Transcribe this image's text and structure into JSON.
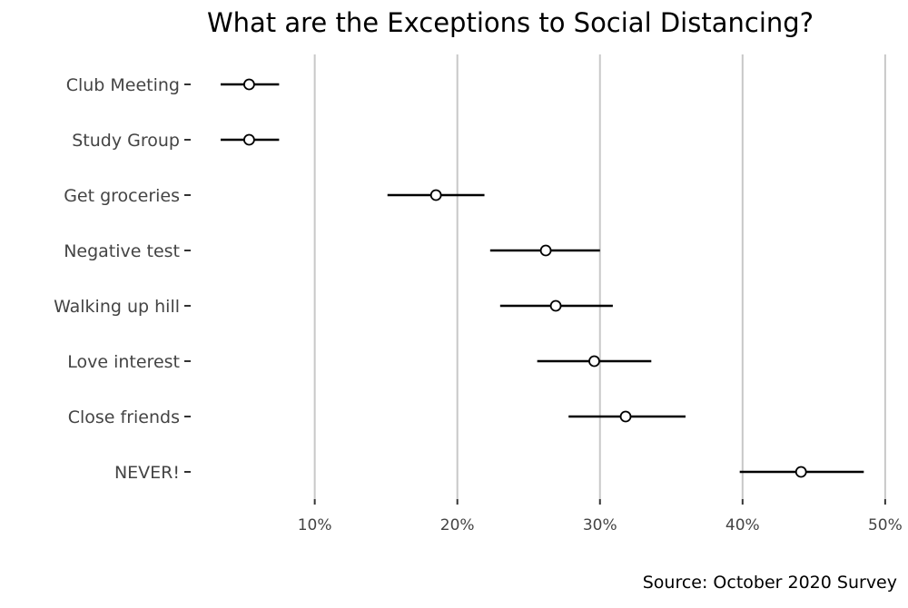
{
  "chart_data": {
    "type": "scatter",
    "title": "What are the Exceptions to Social Distancing?",
    "caption": "Source: October 2020 Survey",
    "xlabel": "",
    "ylabel": "",
    "xlim": [
      1.3,
      51.6
    ],
    "x_ticks": [
      10,
      20,
      30,
      40,
      50
    ],
    "x_tick_labels": [
      "10%",
      "20%",
      "30%",
      "40%",
      "50%"
    ],
    "grid": "vertical major",
    "categories": [
      "Club Meeting",
      "Study Group",
      "Get groceries",
      "Negative test",
      "Walking up hill",
      "Love interest",
      "Close friends",
      "NEVER!"
    ],
    "values": [
      5.4,
      5.4,
      18.5,
      26.2,
      26.9,
      29.6,
      31.8,
      44.1
    ],
    "lower": [
      3.4,
      3.4,
      15.1,
      22.3,
      23.0,
      25.6,
      27.8,
      39.8
    ],
    "upper": [
      7.5,
      7.5,
      21.9,
      30.0,
      30.9,
      33.6,
      36.0,
      48.5
    ],
    "unit": "%"
  }
}
